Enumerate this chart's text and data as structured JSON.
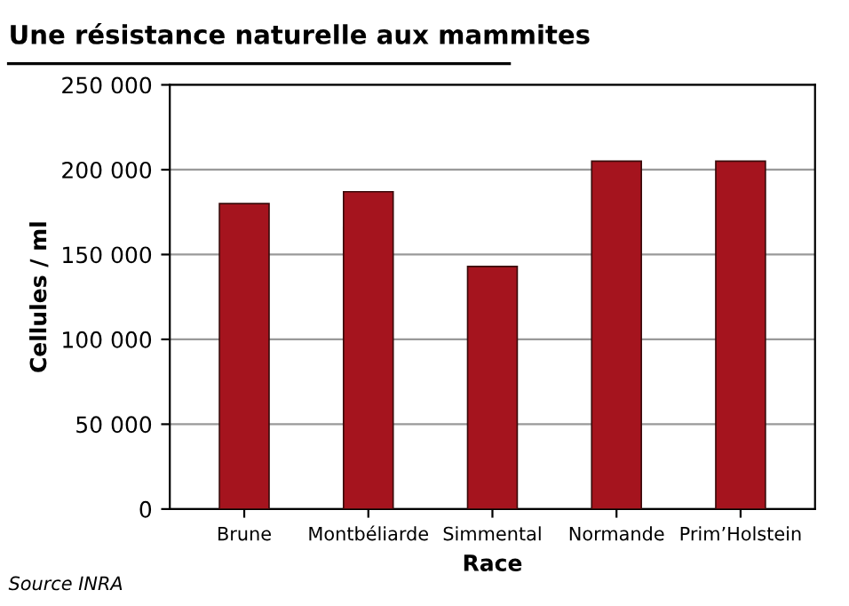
{
  "chart_data": {
    "type": "bar",
    "title": "Une résistance naturelle aux mammites",
    "xlabel": "Race",
    "ylabel": "Cellules / ml",
    "categories": [
      "Brune",
      "Montbéliarde",
      "Simmental",
      "Normande",
      "Prim’Holstein"
    ],
    "values": [
      180000,
      187000,
      143000,
      205000,
      205000
    ],
    "color": "#a5141e",
    "ylim": [
      0,
      250000
    ],
    "yticks": [
      {
        "value": 0,
        "label": "0"
      },
      {
        "value": 50000,
        "label": "50 000"
      },
      {
        "value": 100000,
        "label": "100 000"
      },
      {
        "value": 150000,
        "label": "150 000"
      },
      {
        "value": 200000,
        "label": "200 000"
      },
      {
        "value": 250000,
        "label": "250 000"
      }
    ],
    "grid": "y",
    "annotations": [
      "Source INRA"
    ]
  }
}
